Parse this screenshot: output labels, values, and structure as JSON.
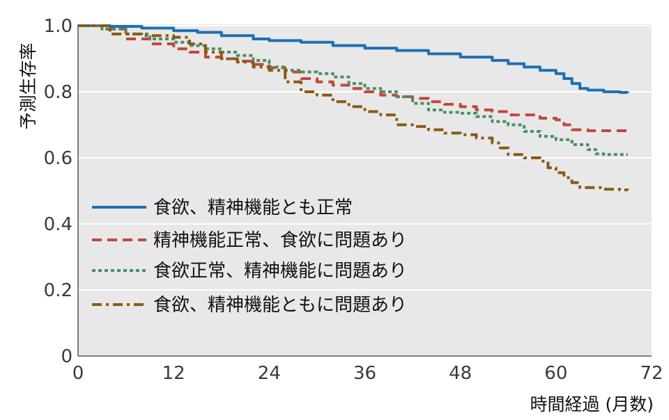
{
  "chart_data": {
    "type": "line",
    "title": "",
    "ylabel": "予測生存率",
    "xlabel": "時間経過 (月数)",
    "xlim": [
      0,
      72
    ],
    "ylim": [
      0,
      1.0
    ],
    "x_ticks": [
      0,
      12,
      24,
      36,
      48,
      60,
      72
    ],
    "x_tick_labels": [
      "0",
      "12",
      "24",
      "36",
      "48",
      "60",
      "72"
    ],
    "y_ticks": [
      0,
      0.2,
      0.4,
      0.6,
      0.8,
      1.0
    ],
    "y_tick_labels": [
      "0",
      "0.2",
      "0.4",
      "0.6",
      "0.8",
      "1.0"
    ],
    "grid": "horizontal",
    "legend_position": "center-left",
    "series": [
      {
        "name": "食欲、精神機能とも正常",
        "color": "#1f6fb2",
        "style": "solid",
        "points": [
          [
            0,
            1.0
          ],
          [
            4,
            0.998
          ],
          [
            8,
            0.993
          ],
          [
            12,
            0.985
          ],
          [
            15,
            0.98
          ],
          [
            18,
            0.97
          ],
          [
            22,
            0.96
          ],
          [
            24,
            0.955
          ],
          [
            28,
            0.95
          ],
          [
            32,
            0.94
          ],
          [
            36,
            0.932
          ],
          [
            40,
            0.925
          ],
          [
            44,
            0.915
          ],
          [
            48,
            0.905
          ],
          [
            52,
            0.895
          ],
          [
            54,
            0.885
          ],
          [
            56,
            0.875
          ],
          [
            58,
            0.865
          ],
          [
            60,
            0.855
          ],
          [
            61,
            0.84
          ],
          [
            62,
            0.825
          ],
          [
            63,
            0.81
          ],
          [
            64,
            0.805
          ],
          [
            66,
            0.8
          ],
          [
            68,
            0.798
          ],
          [
            69,
            0.797
          ]
        ]
      },
      {
        "name": "精神機能正常、食欲に問題あり",
        "color": "#c0483a",
        "style": "dashed",
        "points": [
          [
            0,
            1.0
          ],
          [
            3,
            0.99
          ],
          [
            6,
            0.96
          ],
          [
            9,
            0.945
          ],
          [
            12,
            0.93
          ],
          [
            14,
            0.92
          ],
          [
            16,
            0.905
          ],
          [
            18,
            0.9
          ],
          [
            20,
            0.893
          ],
          [
            22,
            0.883
          ],
          [
            24,
            0.873
          ],
          [
            26,
            0.86
          ],
          [
            28,
            0.84
          ],
          [
            30,
            0.83
          ],
          [
            32,
            0.82
          ],
          [
            34,
            0.81
          ],
          [
            36,
            0.8
          ],
          [
            38,
            0.79
          ],
          [
            40,
            0.785
          ],
          [
            42,
            0.78
          ],
          [
            44,
            0.77
          ],
          [
            46,
            0.762
          ],
          [
            48,
            0.755
          ],
          [
            50,
            0.745
          ],
          [
            52,
            0.74
          ],
          [
            54,
            0.73
          ],
          [
            56,
            0.73
          ],
          [
            58,
            0.72
          ],
          [
            60,
            0.715
          ],
          [
            61,
            0.7
          ],
          [
            62,
            0.685
          ],
          [
            64,
            0.682
          ],
          [
            66,
            0.682
          ],
          [
            68,
            0.682
          ],
          [
            69,
            0.682
          ]
        ]
      },
      {
        "name": "食欲正常、精神機能に問題あり",
        "color": "#4a8f66",
        "style": "dotted",
        "points": [
          [
            0,
            1.0
          ],
          [
            3,
            0.99
          ],
          [
            6,
            0.975
          ],
          [
            9,
            0.96
          ],
          [
            12,
            0.95
          ],
          [
            14,
            0.94
          ],
          [
            16,
            0.93
          ],
          [
            18,
            0.92
          ],
          [
            20,
            0.91
          ],
          [
            22,
            0.895
          ],
          [
            24,
            0.875
          ],
          [
            26,
            0.865
          ],
          [
            28,
            0.86
          ],
          [
            30,
            0.855
          ],
          [
            32,
            0.845
          ],
          [
            34,
            0.825
          ],
          [
            36,
            0.81
          ],
          [
            38,
            0.8
          ],
          [
            40,
            0.785
          ],
          [
            42,
            0.765
          ],
          [
            44,
            0.745
          ],
          [
            46,
            0.738
          ],
          [
            48,
            0.735
          ],
          [
            50,
            0.725
          ],
          [
            52,
            0.71
          ],
          [
            54,
            0.7
          ],
          [
            56,
            0.68
          ],
          [
            58,
            0.665
          ],
          [
            60,
            0.655
          ],
          [
            62,
            0.64
          ],
          [
            64,
            0.625
          ],
          [
            65,
            0.612
          ],
          [
            66,
            0.61
          ],
          [
            68,
            0.61
          ],
          [
            69,
            0.61
          ]
        ]
      },
      {
        "name": "食欲、精神機能ともに問題あり",
        "color": "#8a5a12",
        "style": "dashdot",
        "points": [
          [
            0,
            1.0
          ],
          [
            4,
            0.975
          ],
          [
            8,
            0.97
          ],
          [
            12,
            0.965
          ],
          [
            14,
            0.945
          ],
          [
            16,
            0.92
          ],
          [
            18,
            0.9
          ],
          [
            20,
            0.89
          ],
          [
            22,
            0.875
          ],
          [
            24,
            0.865
          ],
          [
            26,
            0.83
          ],
          [
            28,
            0.8
          ],
          [
            30,
            0.79
          ],
          [
            32,
            0.77
          ],
          [
            34,
            0.755
          ],
          [
            36,
            0.74
          ],
          [
            38,
            0.73
          ],
          [
            40,
            0.7
          ],
          [
            42,
            0.695
          ],
          [
            44,
            0.685
          ],
          [
            46,
            0.675
          ],
          [
            48,
            0.67
          ],
          [
            50,
            0.66
          ],
          [
            52,
            0.645
          ],
          [
            53,
            0.63
          ],
          [
            54,
            0.61
          ],
          [
            56,
            0.6
          ],
          [
            58,
            0.59
          ],
          [
            59,
            0.57
          ],
          [
            60,
            0.555
          ],
          [
            61,
            0.54
          ],
          [
            62,
            0.525
          ],
          [
            63,
            0.51
          ],
          [
            66,
            0.505
          ],
          [
            68,
            0.503
          ],
          [
            69,
            0.502
          ]
        ]
      }
    ]
  }
}
